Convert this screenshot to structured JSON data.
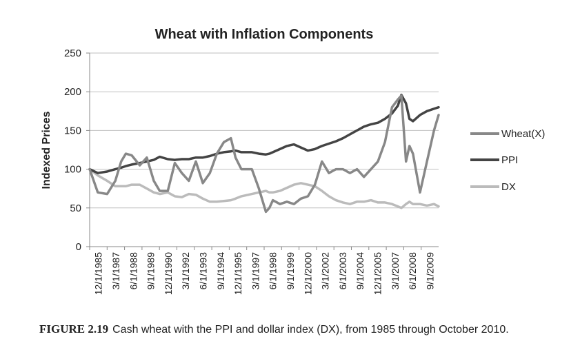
{
  "caption": {
    "figure_label": "FIGURE 2.19",
    "text": "Cash wheat with the PPI and dollar index (DX), from 1985 through October 2010."
  },
  "chart_data": {
    "type": "line",
    "title": "Wheat with Inflation Components",
    "xlabel": "",
    "ylabel": "Indexed Prices",
    "ylim": [
      0,
      250
    ],
    "yticks": [
      0,
      50,
      100,
      150,
      200,
      250
    ],
    "grid": true,
    "legend_position": "right",
    "categories": [
      "12/1/1985",
      "3/1/1987",
      "6/1/1988",
      "9/1/1989",
      "12/1/1990",
      "3/1/1992",
      "6/1/1993",
      "9/1/1994",
      "12/1/1995",
      "3/1/1997",
      "6/1/1998",
      "9/1/1999",
      "12/1/2000",
      "3/1/2002",
      "6/1/2003",
      "9/1/2004",
      "12/1/2005",
      "3/1/2007",
      "6/1/2008",
      "9/1/2009"
    ],
    "x": [
      1985.92,
      1986.5,
      1987.17,
      1987.75,
      1988.17,
      1988.5,
      1988.92,
      1989.5,
      1990.0,
      1990.5,
      1990.92,
      1991.5,
      1992.0,
      1992.5,
      1993.0,
      1993.5,
      1994.0,
      1994.5,
      1995.0,
      1995.5,
      1996.0,
      1996.33,
      1996.75,
      1997.5,
      1998.0,
      1998.5,
      1998.75,
      1999.0,
      1999.5,
      2000.0,
      2000.5,
      2001.0,
      2001.5,
      2002.0,
      2002.5,
      2003.0,
      2003.5,
      2004.0,
      2004.5,
      2005.0,
      2005.5,
      2006.0,
      2006.5,
      2007.0,
      2007.5,
      2007.92,
      2008.17,
      2008.5,
      2008.75,
      2009.0,
      2009.5,
      2010.0,
      2010.5,
      2010.83
    ],
    "series": [
      {
        "name": "Wheat(X)",
        "color": "#888888",
        "values": [
          100,
          70,
          68,
          85,
          110,
          120,
          118,
          105,
          115,
          85,
          72,
          72,
          108,
          95,
          85,
          110,
          82,
          95,
          120,
          135,
          140,
          115,
          100,
          100,
          75,
          45,
          50,
          60,
          55,
          58,
          55,
          62,
          65,
          80,
          110,
          95,
          100,
          100,
          95,
          100,
          90,
          100,
          110,
          135,
          180,
          190,
          195,
          110,
          130,
          120,
          70,
          110,
          150,
          170
        ]
      },
      {
        "name": "PPI",
        "color": "#444444",
        "values": [
          100,
          95,
          97,
          100,
          102,
          104,
          106,
          108,
          110,
          112,
          116,
          113,
          112,
          113,
          113,
          115,
          115,
          117,
          120,
          122,
          123,
          124,
          122,
          122,
          120,
          119,
          120,
          122,
          126,
          130,
          132,
          128,
          124,
          126,
          130,
          133,
          136,
          140,
          145,
          150,
          155,
          158,
          160,
          165,
          172,
          182,
          196,
          185,
          165,
          162,
          170,
          175,
          178,
          180
        ]
      },
      {
        "name": "DX",
        "color": "#bbbbbb",
        "values": [
          100,
          92,
          85,
          78,
          78,
          78,
          80,
          80,
          75,
          70,
          68,
          70,
          65,
          64,
          68,
          67,
          62,
          58,
          58,
          59,
          60,
          62,
          65,
          68,
          70,
          72,
          70,
          70,
          72,
          76,
          80,
          82,
          80,
          78,
          72,
          65,
          60,
          57,
          55,
          58,
          58,
          60,
          57,
          57,
          55,
          52,
          50,
          55,
          58,
          55,
          55,
          53,
          55,
          52
        ]
      }
    ]
  }
}
